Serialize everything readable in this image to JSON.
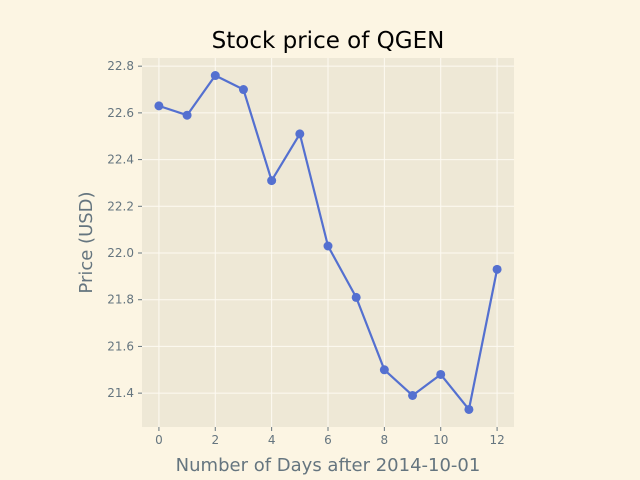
{
  "chart_data": {
    "type": "line",
    "title": "Stock price of QGEN",
    "xlabel": "Number of Days after 2014-10-01",
    "ylabel": "Price (USD)",
    "x": [
      0,
      1,
      2,
      3,
      4,
      5,
      6,
      7,
      8,
      9,
      10,
      11,
      12
    ],
    "series": [
      {
        "values": [
          22.63,
          22.59,
          22.76,
          22.7,
          22.31,
          22.51,
          22.03,
          21.81,
          21.5,
          21.39,
          21.48,
          21.33,
          21.93
        ]
      }
    ],
    "xlim": [
      -0.6,
      12.6
    ],
    "ylim": [
      21.255,
      22.835
    ],
    "xticks": [
      0,
      2,
      4,
      6,
      8,
      10,
      12
    ],
    "xtick_labels": [
      "0",
      "2",
      "4",
      "6",
      "8",
      "10",
      "12"
    ],
    "yticks": [
      21.4,
      21.6,
      21.8,
      22.0,
      22.2,
      22.4,
      22.6,
      22.8
    ],
    "ytick_labels": [
      "21.4",
      "21.6",
      "21.8",
      "22.0",
      "22.2",
      "22.4",
      "22.6",
      "22.8"
    ],
    "grid": true,
    "colors": {
      "figure_background": "#fcf5e3",
      "plot_background": "#eee8d6",
      "grid": "#fdfaf2",
      "line": "#5470d0",
      "axis_text": "#65757f"
    }
  }
}
